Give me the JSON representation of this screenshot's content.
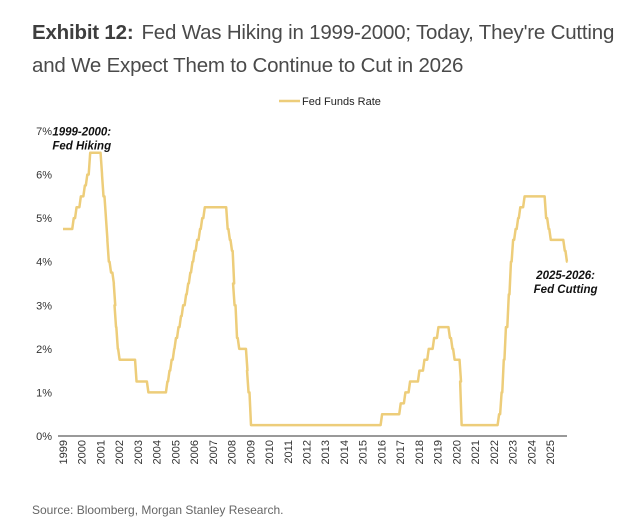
{
  "title": {
    "exhibit": "Exhibit 12:",
    "text": "Fed Was Hiking in 1999-2000; Today, They're Cutting and We Expect Them to Continue to Cut in 2026"
  },
  "source": "Source: Bloomberg, Morgan Stanley Research.",
  "chart_data": {
    "type": "line",
    "title": "",
    "xlabel": "",
    "ylabel": "",
    "ylim": [
      0,
      7
    ],
    "xlim": [
      "1999",
      "2025"
    ],
    "yticks": [
      "0%",
      "1%",
      "2%",
      "3%",
      "4%",
      "5%",
      "6%",
      "7%"
    ],
    "xticks": [
      "1999",
      "2000",
      "2001",
      "2002",
      "2003",
      "2004",
      "2005",
      "2006",
      "2007",
      "2008",
      "2009",
      "2010",
      "2011",
      "2012",
      "2013",
      "2014",
      "2015",
      "2016",
      "2017",
      "2018",
      "2019",
      "2020",
      "2021",
      "2022",
      "2023",
      "2024",
      "2025"
    ],
    "grid": false,
    "legend": "top-center",
    "color": "#EDCD7A",
    "annotations": [
      {
        "line1": "1999-2000:",
        "line2": "Fed Hiking",
        "date": "2000-01-01",
        "value": 6.9
      },
      {
        "line1": "2025-2026:",
        "line2": "Fed Cutting",
        "date": "2025-11-01",
        "value": 3.6
      }
    ],
    "series": [
      {
        "name": "Fed Funds Rate",
        "points": [
          [
            "1999-01-01",
            4.75
          ],
          [
            "1999-06-30",
            5.0
          ],
          [
            "1999-08-24",
            5.25
          ],
          [
            "1999-11-16",
            5.5
          ],
          [
            "2000-02-02",
            5.75
          ],
          [
            "2000-03-21",
            6.0
          ],
          [
            "2000-05-16",
            6.5
          ],
          [
            "2001-01-03",
            6.0
          ],
          [
            "2001-01-31",
            5.5
          ],
          [
            "2001-03-20",
            5.0
          ],
          [
            "2001-04-18",
            4.5
          ],
          [
            "2001-05-15",
            4.0
          ],
          [
            "2001-06-27",
            3.75
          ],
          [
            "2001-08-21",
            3.5
          ],
          [
            "2001-09-17",
            3.0
          ],
          [
            "2001-10-02",
            2.5
          ],
          [
            "2001-11-06",
            2.0
          ],
          [
            "2001-12-11",
            1.75
          ],
          [
            "2002-11-06",
            1.25
          ],
          [
            "2003-06-25",
            1.0
          ],
          [
            "2004-06-30",
            1.25
          ],
          [
            "2004-08-10",
            1.5
          ],
          [
            "2004-09-21",
            1.75
          ],
          [
            "2004-11-10",
            2.0
          ],
          [
            "2004-12-14",
            2.25
          ],
          [
            "2005-02-02",
            2.5
          ],
          [
            "2005-03-22",
            2.75
          ],
          [
            "2005-05-03",
            3.0
          ],
          [
            "2005-06-30",
            3.25
          ],
          [
            "2005-08-09",
            3.5
          ],
          [
            "2005-09-20",
            3.75
          ],
          [
            "2005-11-01",
            4.0
          ],
          [
            "2005-12-13",
            4.25
          ],
          [
            "2006-01-31",
            4.5
          ],
          [
            "2006-03-28",
            4.75
          ],
          [
            "2006-05-10",
            5.0
          ],
          [
            "2006-06-29",
            5.25
          ],
          [
            "2007-09-18",
            4.75
          ],
          [
            "2007-10-31",
            4.5
          ],
          [
            "2007-12-11",
            4.25
          ],
          [
            "2008-01-22",
            3.5
          ],
          [
            "2008-01-30",
            3.0
          ],
          [
            "2008-03-18",
            2.25
          ],
          [
            "2008-04-30",
            2.0
          ],
          [
            "2008-10-08",
            1.5
          ],
          [
            "2008-10-29",
            1.0
          ],
          [
            "2008-12-16",
            0.25
          ],
          [
            "2015-12-16",
            0.5
          ],
          [
            "2016-12-14",
            0.75
          ],
          [
            "2017-03-15",
            1.0
          ],
          [
            "2017-06-14",
            1.25
          ],
          [
            "2017-12-13",
            1.5
          ],
          [
            "2018-03-21",
            1.75
          ],
          [
            "2018-06-13",
            2.0
          ],
          [
            "2018-09-26",
            2.25
          ],
          [
            "2018-12-19",
            2.5
          ],
          [
            "2019-07-31",
            2.25
          ],
          [
            "2019-09-18",
            2.0
          ],
          [
            "2019-10-30",
            1.75
          ],
          [
            "2020-03-03",
            1.25
          ],
          [
            "2020-03-15",
            0.25
          ],
          [
            "2022-03-16",
            0.5
          ],
          [
            "2022-05-04",
            1.0
          ],
          [
            "2022-06-15",
            1.75
          ],
          [
            "2022-07-27",
            2.5
          ],
          [
            "2022-09-21",
            3.25
          ],
          [
            "2022-11-02",
            4.0
          ],
          [
            "2022-12-14",
            4.5
          ],
          [
            "2023-02-01",
            4.75
          ],
          [
            "2023-03-22",
            5.0
          ],
          [
            "2023-05-03",
            5.25
          ],
          [
            "2023-07-26",
            5.5
          ],
          [
            "2024-09-18",
            5.0
          ],
          [
            "2024-11-07",
            4.75
          ],
          [
            "2024-12-18",
            4.5
          ],
          [
            "2025-09-17",
            4.25
          ],
          [
            "2025-10-29",
            4.0
          ]
        ]
      }
    ]
  }
}
